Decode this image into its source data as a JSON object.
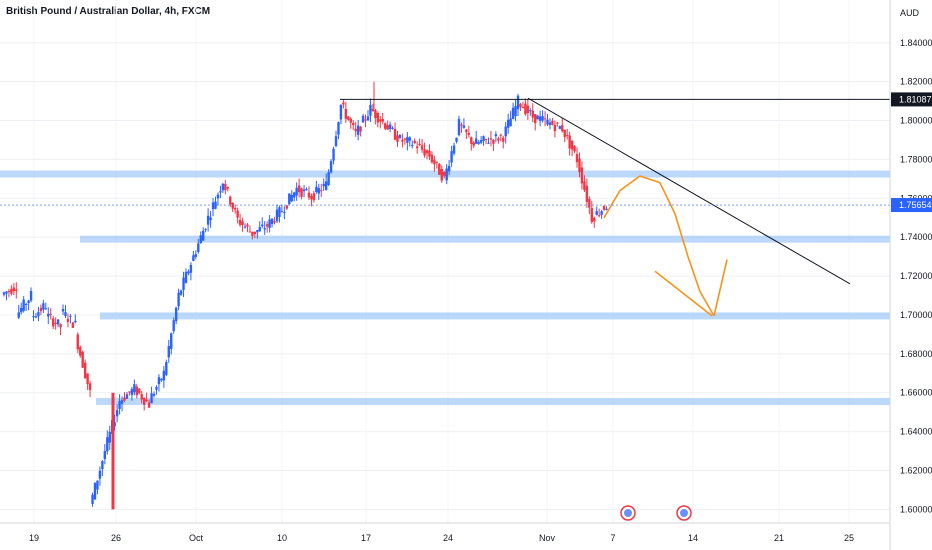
{
  "header": {
    "title": "British Pound / Australian Dollar, 4h, FXCM"
  },
  "currency_label": "AUD",
  "price_tags": {
    "resistance": "1.81087",
    "last": "1.75654"
  },
  "colors": {
    "up": "#2962ff",
    "down": "#f23645",
    "zone": "#90bff9",
    "drawing": "#f7931a",
    "line": "#131722"
  },
  "chart_data": {
    "type": "candlestick",
    "title": "British Pound / Australian Dollar, 4h, FXCM",
    "symbol": "GBPAUD",
    "timeframe": "4h",
    "source": "FXCM",
    "ylabel": "AUD",
    "ylim": [
      1.593,
      1.862
    ],
    "yticks": [
      "1.60000",
      "1.62000",
      "1.64000",
      "1.66000",
      "1.68000",
      "1.70000",
      "1.72000",
      "1.74000",
      "1.76000",
      "1.78000",
      "1.80000",
      "1.82000",
      "1.84000"
    ],
    "xticks": [
      "19",
      "26",
      "Oct",
      "10",
      "17",
      "24",
      "Nov",
      "7",
      "14",
      "21",
      "25"
    ],
    "grid": true,
    "last_price": 1.75654,
    "resistance_level": 1.81087,
    "horizontal_zones": [
      1.7725,
      1.739,
      1.6995,
      1.6555
    ],
    "projection": "bearish move toward 1.70",
    "path_points": [
      [
        1.7105,
        1.715
      ],
      [
        1.7,
        1.71
      ],
      [
        1.699,
        1.705
      ],
      [
        1.7,
        1.694
      ],
      [
        1.702,
        1.695
      ],
      [
        1.69,
        1.66
      ],
      [
        1.602,
        1.63
      ],
      [
        1.63,
        1.656
      ],
      [
        1.656,
        1.662
      ],
      [
        1.662,
        1.654
      ],
      [
        1.656,
        1.67
      ],
      [
        1.67,
        1.71
      ],
      [
        1.71,
        1.73
      ],
      [
        1.73,
        1.75
      ],
      [
        1.75,
        1.769
      ],
      [
        1.769,
        1.749
      ],
      [
        1.749,
        1.742
      ],
      [
        1.742,
        1.746
      ],
      [
        1.746,
        1.754
      ],
      [
        1.754,
        1.765
      ],
      [
        1.765,
        1.761
      ],
      [
        1.761,
        1.767
      ],
      [
        1.767,
        1.808
      ],
      [
        1.808,
        1.793
      ],
      [
        1.793,
        1.806
      ],
      [
        1.806,
        1.798
      ],
      [
        1.798,
        1.79
      ],
      [
        1.79,
        1.788
      ],
      [
        1.788,
        1.782
      ],
      [
        1.782,
        1.77
      ],
      [
        1.77,
        1.798
      ],
      [
        1.798,
        1.788
      ],
      [
        1.788,
        1.79
      ],
      [
        1.79,
        1.792
      ],
      [
        1.792,
        1.81
      ],
      [
        1.81,
        1.802
      ],
      [
        1.802,
        1.799
      ],
      [
        1.799,
        1.796
      ],
      [
        1.796,
        1.78
      ],
      [
        1.78,
        1.75
      ],
      [
        1.75,
        1.7565
      ]
    ]
  }
}
